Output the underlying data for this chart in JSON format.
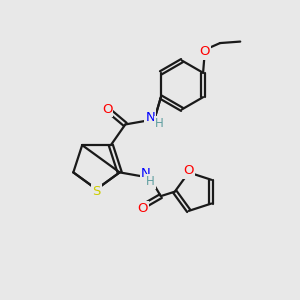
{
  "bg_color": "#e8e8e8",
  "line_color": "#1a1a1a",
  "bond_width": 1.6,
  "font_size": 9.5,
  "atom_colors": {
    "O": "#ff0000",
    "N": "#0000ff",
    "S": "#cccc00",
    "H": "#5f9ea0",
    "C": "#1a1a1a"
  },
  "figsize": [
    3.0,
    3.0
  ],
  "dpi": 100
}
